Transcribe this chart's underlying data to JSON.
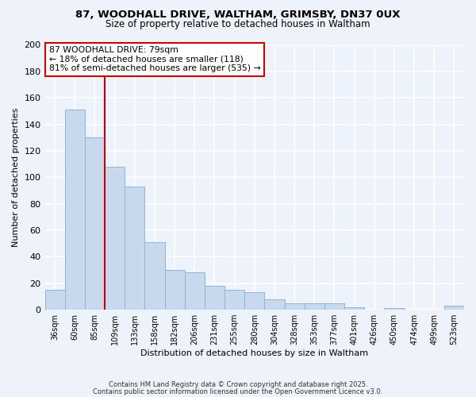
{
  "title_line1": "87, WOODHALL DRIVE, WALTHAM, GRIMSBY, DN37 0UX",
  "title_line2": "Size of property relative to detached houses in Waltham",
  "xlabel": "Distribution of detached houses by size in Waltham",
  "ylabel": "Number of detached properties",
  "bin_labels": [
    "36sqm",
    "60sqm",
    "85sqm",
    "109sqm",
    "133sqm",
    "158sqm",
    "182sqm",
    "206sqm",
    "231sqm",
    "255sqm",
    "280sqm",
    "304sqm",
    "328sqm",
    "353sqm",
    "377sqm",
    "401sqm",
    "426sqm",
    "450sqm",
    "474sqm",
    "499sqm",
    "523sqm"
  ],
  "bar_values": [
    15,
    151,
    130,
    108,
    93,
    51,
    30,
    28,
    18,
    15,
    13,
    8,
    5,
    5,
    5,
    2,
    0,
    1,
    0,
    0,
    3
  ],
  "bar_color": "#c8d9ee",
  "bar_edge_color": "#8fb4d8",
  "reference_line_x": 2.5,
  "annotation_title": "87 WOODHALL DRIVE: 79sqm",
  "annotation_line1": "← 18% of detached houses are smaller (118)",
  "annotation_line2": "81% of semi-detached houses are larger (535) →",
  "ylim": [
    0,
    200
  ],
  "yticks": [
    0,
    20,
    40,
    60,
    80,
    100,
    120,
    140,
    160,
    180,
    200
  ],
  "footer_line1": "Contains HM Land Registry data © Crown copyright and database right 2025.",
  "footer_line2": "Contains public sector information licensed under the Open Government Licence v3.0.",
  "bg_color": "#eef2fa",
  "plot_bg_color": "#eef2fa",
  "grid_color": "#ffffff",
  "annotation_box_color": "#ffffff",
  "annotation_box_edge": "#cc0000",
  "reference_line_color": "#cc0000"
}
